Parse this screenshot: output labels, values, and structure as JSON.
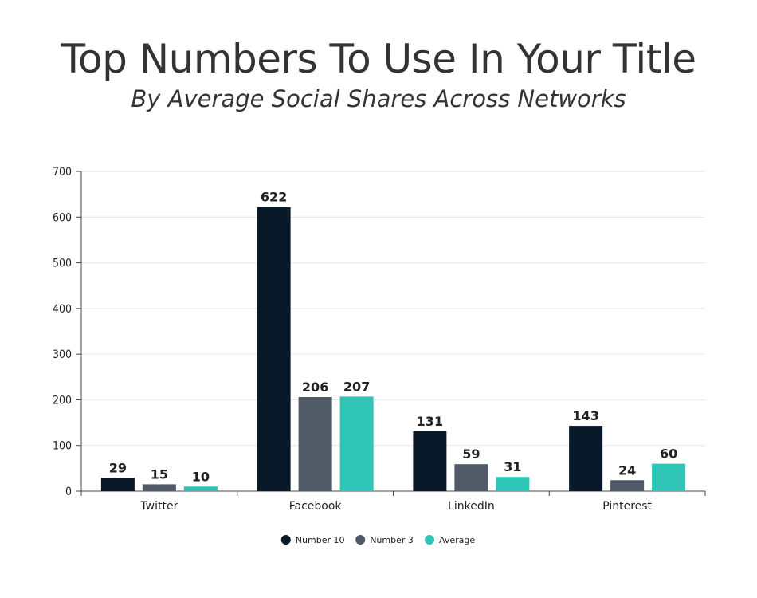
{
  "title": "Top Numbers To Use In Your Title",
  "subtitle": "By Average Social Shares Across Networks",
  "chart_data": {
    "type": "bar",
    "categories": [
      "Twitter",
      "Facebook",
      "LinkedIn",
      "Pinterest"
    ],
    "series": [
      {
        "name": "Number 10",
        "values": [
          29,
          622,
          131,
          143
        ],
        "color": "#0a1929"
      },
      {
        "name": "Number 3",
        "values": [
          15,
          206,
          59,
          24
        ],
        "color": "#4f5a66"
      },
      {
        "name": "Average",
        "values": [
          10,
          207,
          31,
          60
        ],
        "color": "#2ec4b6"
      }
    ],
    "ylim": [
      0,
      700
    ],
    "yticks": [
      0,
      100,
      200,
      300,
      400,
      500,
      600,
      700
    ],
    "grid": true,
    "legend": "bottom-center",
    "data_labels": true
  }
}
